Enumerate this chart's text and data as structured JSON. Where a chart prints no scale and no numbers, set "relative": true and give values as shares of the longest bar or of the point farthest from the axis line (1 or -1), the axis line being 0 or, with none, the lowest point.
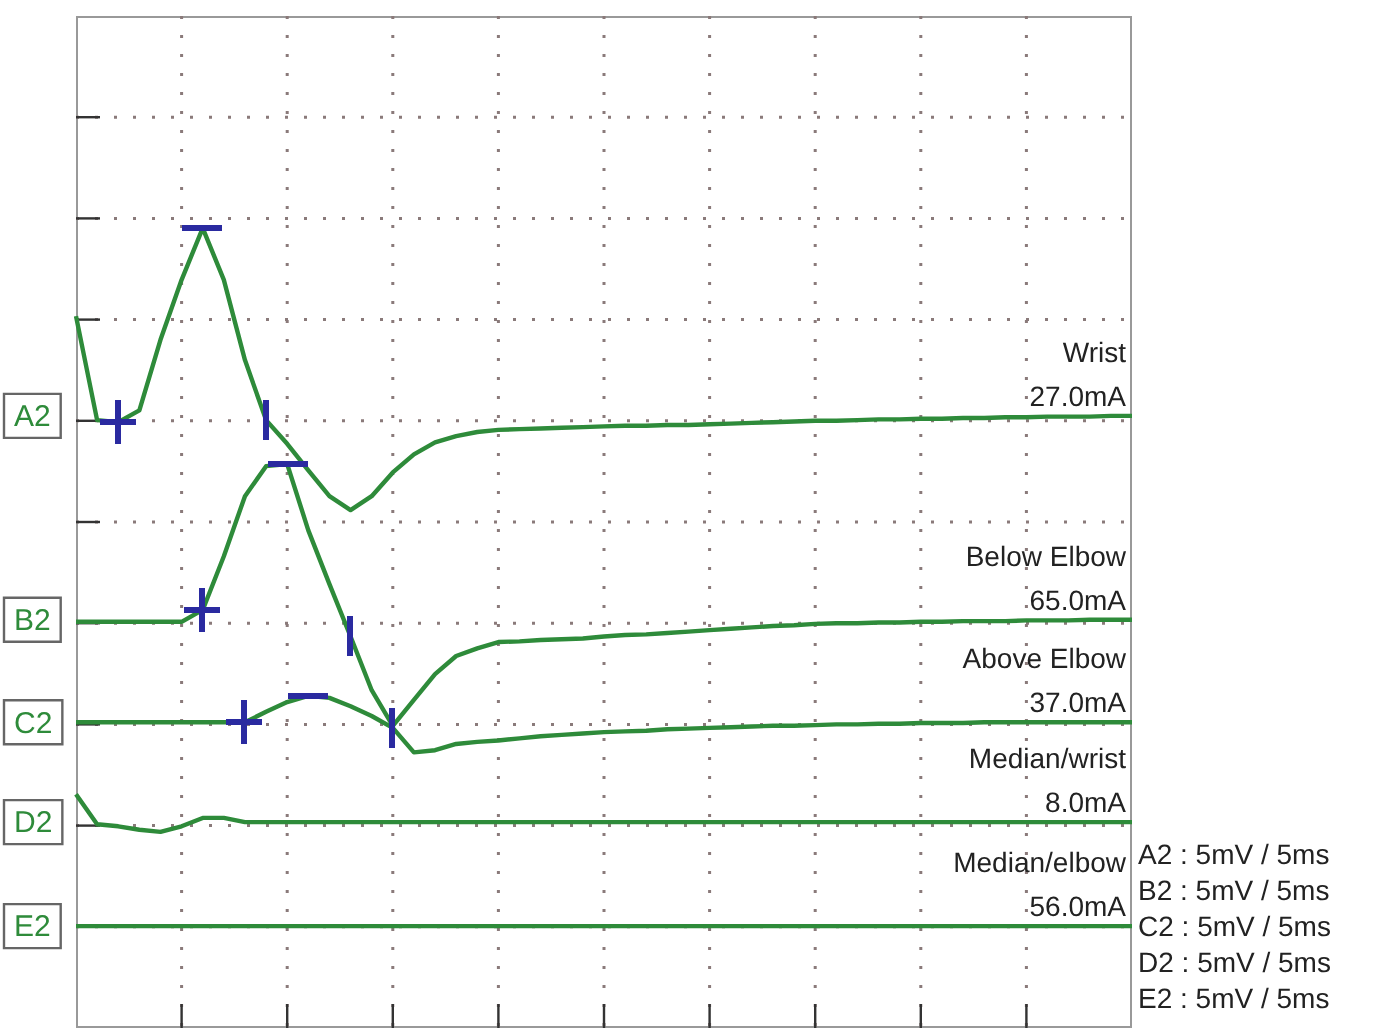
{
  "chart_data": {
    "type": "line",
    "relative": true,
    "grid": true,
    "legend": "left",
    "line_style": "solid",
    "categories": [
      null,
      null,
      null,
      null,
      null,
      null,
      null,
      null,
      null,
      null,
      null,
      null,
      null,
      null,
      null,
      null,
      null,
      null,
      null,
      null,
      null,
      null,
      null,
      null,
      null,
      null,
      null,
      null,
      null,
      null,
      null,
      null,
      null,
      null,
      null,
      null,
      null,
      null,
      null,
      null,
      null,
      null,
      null,
      null,
      null,
      null,
      null,
      null,
      null,
      null,
      null
    ],
    "series": [
      {
        "name": "A2",
        "color": "#2e8b3a",
        "values": [
          0.874,
          0.725,
          0.722,
          0.739,
          0.84,
          0.926,
          1.0,
          0.926,
          0.811,
          0.725,
          0.691,
          0.653,
          0.616,
          0.596,
          0.616,
          0.65,
          0.676,
          0.693,
          0.702,
          0.708,
          0.711,
          0.712,
          0.713,
          0.714,
          0.715,
          0.716,
          0.717,
          0.717,
          0.718,
          0.718,
          0.719,
          0.72,
          0.721,
          0.722,
          0.723,
          0.724,
          0.724,
          0.725,
          0.726,
          0.726,
          0.727,
          0.727,
          0.728,
          0.728,
          0.729,
          0.729,
          0.73,
          0.73,
          0.73,
          0.731,
          0.731
        ]
      },
      {
        "name": "B2",
        "color": "#2e8b3a",
        "values": [
          0.436,
          0.436,
          0.436,
          0.436,
          0.436,
          0.436,
          0.453,
          0.53,
          0.616,
          0.659,
          0.662,
          0.567,
          0.49,
          0.415,
          0.338,
          0.287,
          0.324,
          0.361,
          0.387,
          0.398,
          0.407,
          0.408,
          0.41,
          0.411,
          0.412,
          0.415,
          0.417,
          0.418,
          0.42,
          0.422,
          0.424,
          0.426,
          0.428,
          0.43,
          0.431,
          0.433,
          0.434,
          0.434,
          0.435,
          0.435,
          0.436,
          0.436,
          0.437,
          0.437,
          0.437,
          0.438,
          0.438,
          0.438,
          0.439,
          0.439,
          0.439
        ]
      },
      {
        "name": "C2",
        "color": "#2e8b3a",
        "values": [
          0.292,
          0.292,
          0.292,
          0.292,
          0.292,
          0.292,
          0.292,
          0.292,
          0.292,
          0.307,
          0.321,
          0.33,
          0.327,
          0.315,
          0.301,
          0.284,
          0.249,
          0.252,
          0.261,
          0.264,
          0.266,
          0.269,
          0.272,
          0.274,
          0.276,
          0.278,
          0.279,
          0.28,
          0.282,
          0.283,
          0.284,
          0.285,
          0.286,
          0.287,
          0.287,
          0.288,
          0.289,
          0.289,
          0.29,
          0.29,
          0.291,
          0.291,
          0.291,
          0.292,
          0.292,
          0.292,
          0.292,
          0.292,
          0.292,
          0.292,
          0.292
        ]
      },
      {
        "name": "D2",
        "color": "#2e8b3a",
        "values": [
          0.189,
          0.146,
          0.143,
          0.138,
          0.135,
          0.143,
          0.155,
          0.155,
          0.149,
          0.149,
          0.149,
          0.149,
          0.149,
          0.149,
          0.149,
          0.149,
          0.149,
          0.149,
          0.149,
          0.149,
          0.149,
          0.149,
          0.149,
          0.149,
          0.149,
          0.149,
          0.149,
          0.149,
          0.149,
          0.149,
          0.149,
          0.149,
          0.149,
          0.149,
          0.149,
          0.149,
          0.149,
          0.149,
          0.149,
          0.149,
          0.149,
          0.149,
          0.149,
          0.149,
          0.149,
          0.149,
          0.149,
          0.149,
          0.149,
          0.149,
          0.149
        ]
      },
      {
        "name": "E2",
        "color": "#2e8b3a",
        "values": [
          0,
          0,
          0,
          0,
          0,
          0,
          0,
          0,
          0,
          0,
          0,
          0,
          0,
          0,
          0,
          0,
          0,
          0,
          0,
          0,
          0,
          0,
          0,
          0,
          0,
          0,
          0,
          0,
          0,
          0,
          0,
          0,
          0,
          0,
          0,
          0,
          0,
          0,
          0,
          0,
          0,
          0,
          0,
          0,
          0,
          0,
          0,
          0,
          0,
          0,
          0
        ]
      }
    ],
    "annotations": [
      "Wrist\n27.0mA",
      "Below Elbow\n65.0mA",
      "Above Elbow\n37.0mA",
      "Median/wrist\n8.0mA",
      "Median/elbow\n56.0mA",
      "A2 : 5mV / 5ms",
      "B2 : 5mV / 5ms",
      "C2 : 5mV / 5ms",
      "D2 : 5mV / 5ms",
      "E2 : 5mV / 5ms"
    ]
  }
}
